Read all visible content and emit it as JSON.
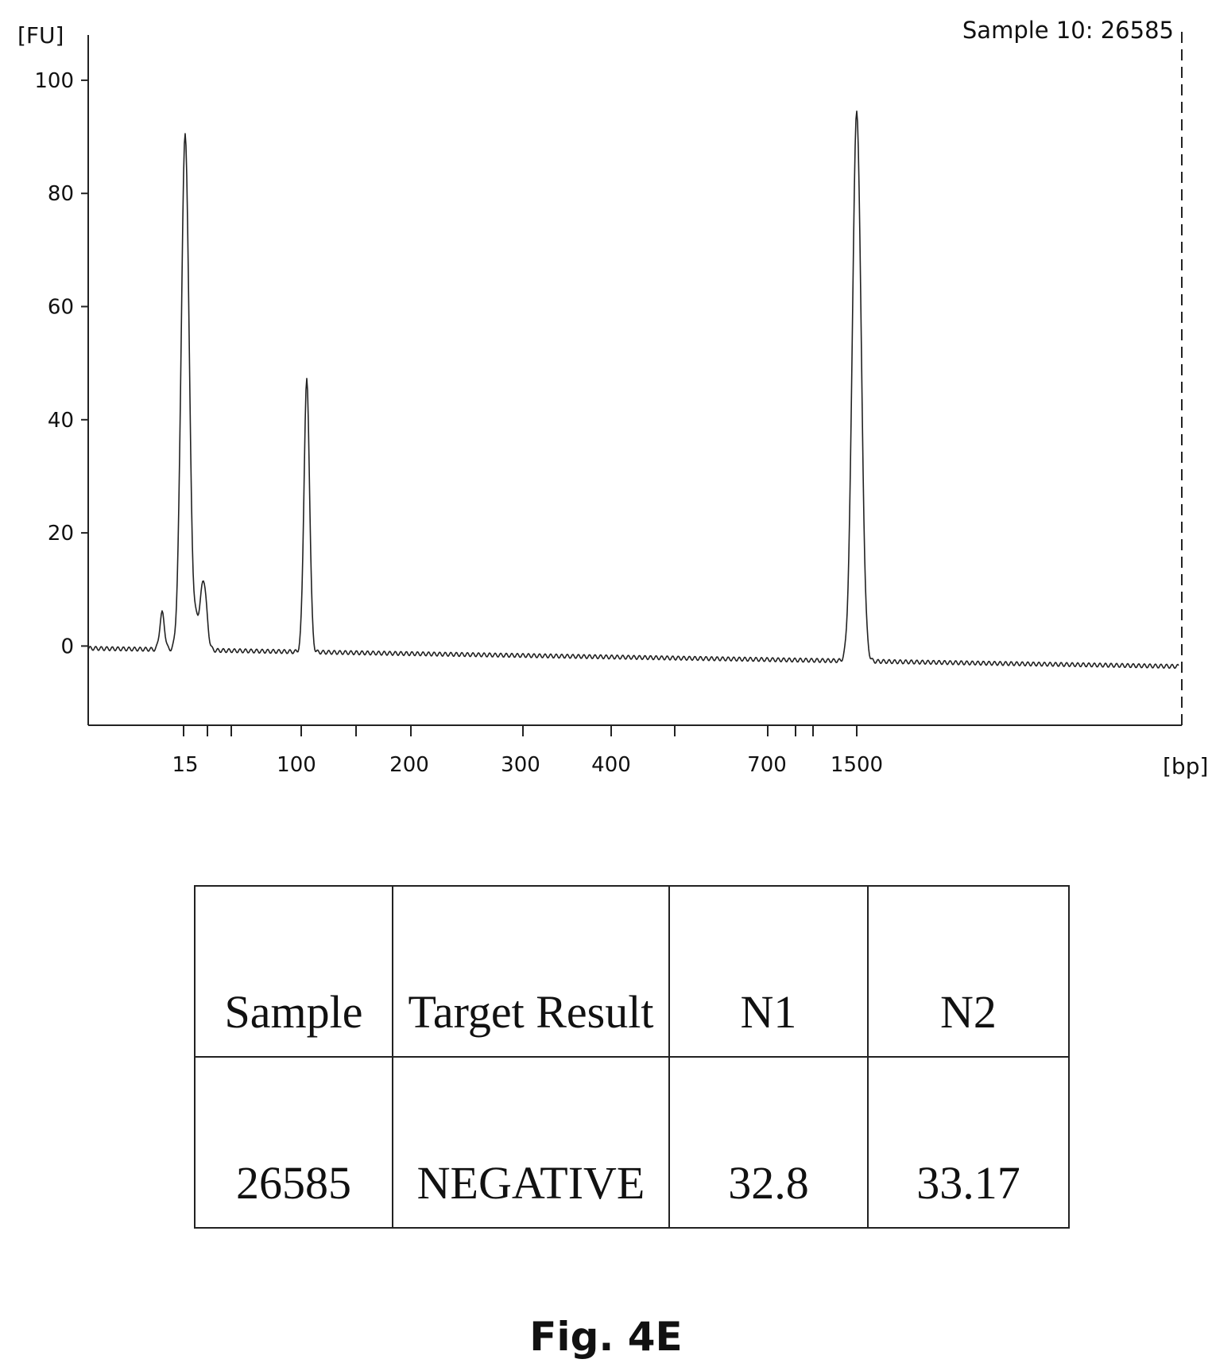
{
  "chart_data": {
    "type": "line",
    "y_unit_label": "[FU]",
    "x_unit_label": "[bp]",
    "sample_label": "Sample 10: 26585",
    "ylim": [
      -14,
      108
    ],
    "y_ticks": [
      0,
      20,
      40,
      60,
      80,
      100
    ],
    "x_tick_labels": [
      "15",
      "100",
      "200",
      "300",
      "400",
      "700",
      "1500"
    ],
    "grid": false,
    "peaks": [
      {
        "x": "15",
        "fu": 91
      },
      {
        "x": "100",
        "fu": 48
      },
      {
        "x": "1500",
        "fu": 97
      }
    ]
  },
  "table": {
    "header": [
      "Sample",
      "Target Result",
      "N1",
      "N2"
    ],
    "rows": [
      [
        "26585",
        "NEGATIVE",
        "32.8",
        "33.17"
      ]
    ]
  },
  "caption": "Fig. 4E"
}
